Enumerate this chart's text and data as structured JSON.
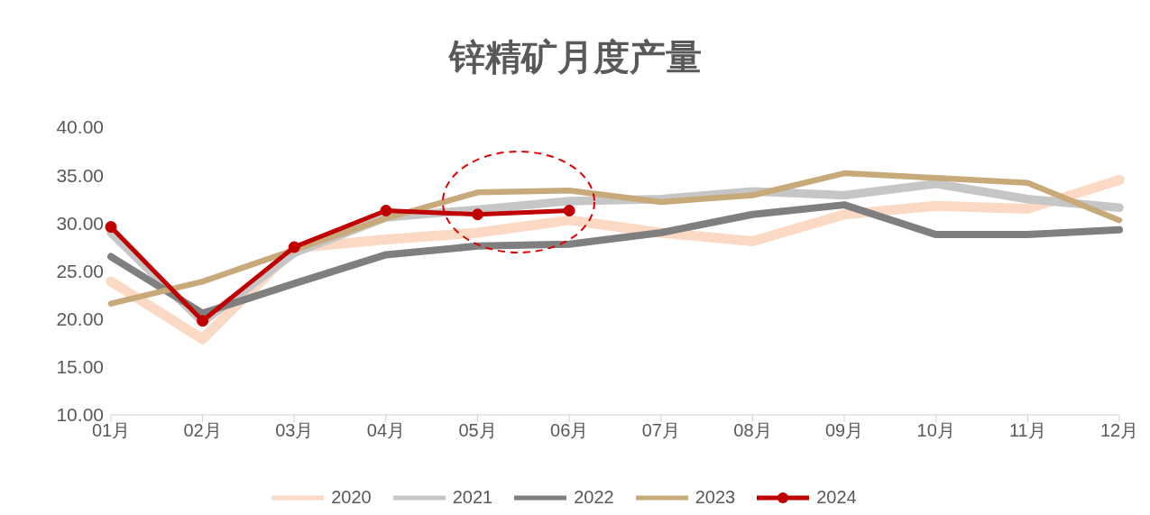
{
  "chart_data": {
    "type": "line",
    "title": "锌精矿月度产量",
    "categories": [
      "01月",
      "02月",
      "03月",
      "04月",
      "05月",
      "06月",
      "07月",
      "08月",
      "09月",
      "10月",
      "11月",
      "12月"
    ],
    "series": [
      {
        "name": "2020",
        "color": "#fcd9c4",
        "marker": "none",
        "values": [
          23.9,
          17.9,
          27.4,
          28.3,
          29.0,
          30.3,
          29.0,
          28.1,
          30.9,
          31.8,
          31.5,
          34.5
        ]
      },
      {
        "name": "2021",
        "color": "#c6c6c6",
        "marker": "none",
        "values": [
          29.0,
          19.7,
          26.9,
          30.6,
          31.4,
          32.3,
          32.5,
          33.3,
          32.9,
          34.1,
          32.5,
          31.6
        ]
      },
      {
        "name": "2022",
        "color": "#7f7f7f",
        "marker": "none",
        "values": [
          26.5,
          20.6,
          23.7,
          26.7,
          27.6,
          27.8,
          29.0,
          30.9,
          31.9,
          28.8,
          28.8,
          29.3
        ]
      },
      {
        "name": "2023",
        "color": "#c8a97a",
        "marker": "none",
        "values": [
          21.6,
          23.9,
          27.2,
          30.5,
          33.2,
          33.4,
          32.2,
          32.9,
          35.2,
          34.7,
          34.2,
          30.3
        ]
      },
      {
        "name": "2024",
        "color": "#c00000",
        "marker": "circle",
        "values": [
          29.6,
          19.8,
          27.5,
          31.3,
          30.9,
          31.3,
          null,
          null,
          null,
          null,
          null,
          null
        ]
      }
    ],
    "ylim": [
      10,
      40
    ],
    "yticks": [
      {
        "value": 10,
        "label": "10.00"
      },
      {
        "value": 15,
        "label": "15.00"
      },
      {
        "value": 20,
        "label": "20.00"
      },
      {
        "value": 25,
        "label": "25.00"
      },
      {
        "value": 30,
        "label": "30.00"
      },
      {
        "value": 35,
        "label": "35.00"
      },
      {
        "value": 40,
        "label": "40.00"
      }
    ],
    "grid": false,
    "legend": "bottom",
    "line_style": "solid"
  }
}
